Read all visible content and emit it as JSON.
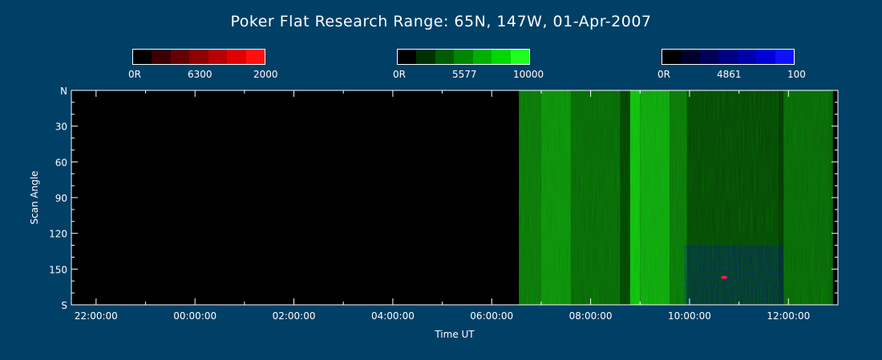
{
  "title": "Poker Flat Research Range: 65N, 147W, 01-Apr-2007",
  "colorbars": [
    {
      "name": "6300",
      "labels": [
        "0R",
        "6300",
        "2000"
      ],
      "colors": [
        "#000000",
        "#3a0000",
        "#660000",
        "#8f0000",
        "#b80000",
        "#e00000",
        "#ff1010"
      ]
    },
    {
      "name": "5577",
      "labels": [
        "0R",
        "5577",
        "10000"
      ],
      "colors": [
        "#000000",
        "#003000",
        "#005c00",
        "#008600",
        "#00b000",
        "#00d800",
        "#20ff20"
      ]
    },
    {
      "name": "4861",
      "labels": [
        "0R",
        "4861",
        "100"
      ],
      "colors": [
        "#000000",
        "#00002e",
        "#000058",
        "#000082",
        "#0000ac",
        "#0000d6",
        "#1010ff"
      ]
    }
  ],
  "chart_data": {
    "type": "heatmap",
    "title": "Poker Flat Research Range: 65N, 147W, 01-Apr-2007",
    "xlabel": "Time UT",
    "ylabel": "Scan Angle",
    "x_ticks": [
      "22:00:00",
      "00:00:00",
      "02:00:00",
      "04:00:00",
      "06:00:00",
      "08:00:00",
      "10:00:00",
      "12:00:00"
    ],
    "y_ticks": [
      "N",
      "30",
      "60",
      "90",
      "120",
      "150",
      "S"
    ],
    "y_tick_values": [
      0,
      30,
      60,
      90,
      120,
      150,
      180
    ],
    "ylim": [
      0,
      180
    ],
    "x_range_hours": [
      21.5,
      37.0
    ],
    "data_start_hour": 30.55,
    "green_bands": [
      {
        "start": 30.55,
        "end": 31.0,
        "intensity": 0.45
      },
      {
        "start": 31.0,
        "end": 31.6,
        "intensity": 0.6
      },
      {
        "start": 31.6,
        "end": 32.6,
        "intensity": 0.35
      },
      {
        "start": 32.6,
        "end": 32.8,
        "intensity": 0.1
      },
      {
        "start": 32.8,
        "end": 33.0,
        "intensity": 0.9
      },
      {
        "start": 33.0,
        "end": 33.6,
        "intensity": 0.75
      },
      {
        "start": 33.6,
        "end": 33.95,
        "intensity": 0.45
      },
      {
        "start": 33.95,
        "end": 35.8,
        "intensity": 0.15
      },
      {
        "start": 35.8,
        "end": 35.9,
        "intensity": 0.05
      },
      {
        "start": 35.9,
        "end": 36.9,
        "intensity": 0.35
      }
    ],
    "red_spot": {
      "time": 34.7,
      "angle": 157
    }
  }
}
